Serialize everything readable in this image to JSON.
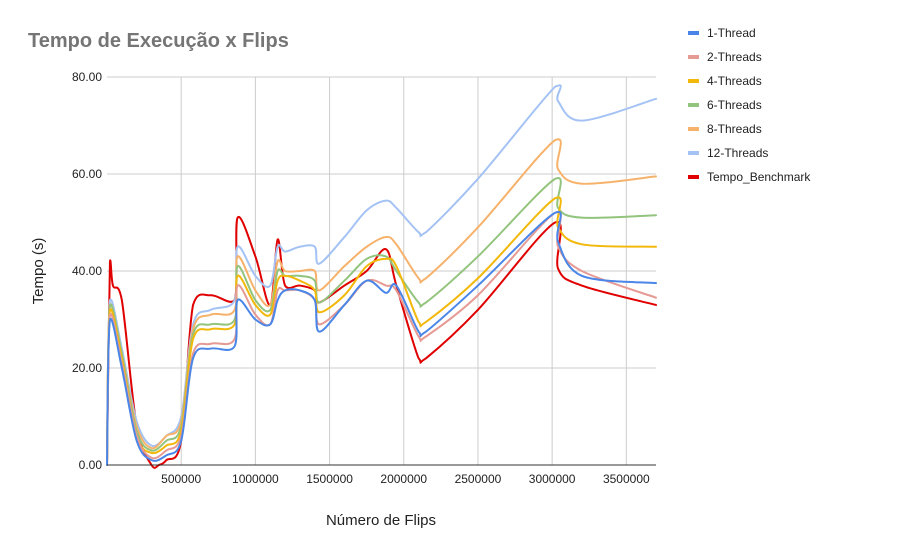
{
  "chart_data": {
    "type": "line",
    "title": "Tempo de Execução x Flips",
    "xlabel": "Número de Flips",
    "ylabel": "Tempo (s)",
    "xlim": [
      0,
      3700000
    ],
    "ylim": [
      0,
      80
    ],
    "xticks": [
      500000,
      1000000,
      1500000,
      2000000,
      2500000,
      3000000,
      3500000
    ],
    "xtick_labels": [
      "500000",
      "1000000",
      "1500000",
      "2000000",
      "2500000",
      "3000000",
      "3500000"
    ],
    "yticks": [
      0,
      20,
      40,
      60,
      80
    ],
    "ytick_labels": [
      "0.00",
      "20.00",
      "40.00",
      "60.00",
      "80.00"
    ],
    "grid": true,
    "legend_position": "right",
    "series": [
      {
        "name": "1-Thread",
        "color": "#4a86e8",
        "x": [
          0,
          20000,
          100000,
          200000,
          300000,
          400000,
          500000,
          580000,
          700000,
          860000,
          880000,
          1000000,
          1100000,
          1150000,
          1200000,
          1300000,
          1400000,
          1430000,
          1600000,
          1750000,
          1880000,
          1950000,
          2100000,
          2150000,
          2500000,
          3020000,
          3040000,
          3200000,
          3700000
        ],
        "y": [
          0,
          30,
          20,
          5,
          1,
          2,
          5,
          22,
          24,
          24.5,
          34,
          30,
          29,
          34,
          36,
          36,
          34,
          27.5,
          33,
          38,
          35.5,
          37,
          27.5,
          27.5,
          37,
          52,
          46,
          39,
          37.5
        ]
      },
      {
        "name": "2-Threads",
        "color": "#e69a94",
        "x": [
          0,
          20000,
          100000,
          200000,
          300000,
          400000,
          500000,
          580000,
          700000,
          860000,
          880000,
          1000000,
          1100000,
          1150000,
          1200000,
          1300000,
          1400000,
          1430000,
          1600000,
          1750000,
          1880000,
          1950000,
          2100000,
          2150000,
          2500000,
          3020000,
          3040000,
          3200000,
          3700000
        ],
        "y": [
          0,
          31,
          21,
          6,
          1.5,
          3,
          6,
          23,
          25,
          26,
          37,
          31,
          29,
          36,
          36,
          36,
          34,
          29,
          33,
          38,
          37,
          36,
          26.5,
          26.5,
          35,
          52,
          45,
          40,
          34.5
        ]
      },
      {
        "name": "4-Threads",
        "color": "#f2b80a",
        "x": [
          0,
          20000,
          100000,
          200000,
          300000,
          400000,
          500000,
          580000,
          700000,
          860000,
          880000,
          1000000,
          1100000,
          1150000,
          1200000,
          1300000,
          1400000,
          1430000,
          1600000,
          1750000,
          1880000,
          1950000,
          2100000,
          2150000,
          2500000,
          3020000,
          3040000,
          3200000,
          3700000
        ],
        "y": [
          0,
          32,
          22,
          6,
          2.5,
          4,
          7,
          26,
          28,
          29,
          39,
          33,
          31,
          38,
          39,
          38,
          36,
          31.5,
          35,
          41,
          42.5,
          41,
          29.5,
          29.5,
          38.5,
          55,
          49,
          45.5,
          45
        ]
      },
      {
        "name": "6-Threads",
        "color": "#93c47d",
        "x": [
          0,
          20000,
          100000,
          200000,
          300000,
          400000,
          500000,
          580000,
          700000,
          860000,
          880000,
          1000000,
          1100000,
          1150000,
          1200000,
          1300000,
          1400000,
          1430000,
          1600000,
          1750000,
          1880000,
          1950000,
          2100000,
          2150000,
          2500000,
          3020000,
          3040000,
          3200000,
          3700000
        ],
        "y": [
          0,
          33,
          23,
          7,
          3,
          5,
          8,
          27,
          29,
          30,
          41,
          34,
          32,
          40,
          39,
          39,
          38,
          33.5,
          38,
          42.5,
          43,
          40,
          33.5,
          33.5,
          43,
          59,
          53,
          51,
          51.5
        ]
      },
      {
        "name": "8-Threads",
        "color": "#f6b26b",
        "x": [
          0,
          20000,
          100000,
          200000,
          300000,
          400000,
          500000,
          580000,
          700000,
          860000,
          880000,
          1000000,
          1100000,
          1150000,
          1200000,
          1300000,
          1400000,
          1430000,
          1600000,
          1750000,
          1880000,
          1950000,
          2100000,
          2150000,
          2500000,
          3020000,
          3040000,
          3200000,
          3700000
        ],
        "y": [
          0,
          33,
          23,
          8,
          3.5,
          6,
          9,
          28,
          31,
          32,
          43,
          36,
          33,
          42,
          40,
          40,
          40,
          36,
          41,
          45,
          47,
          45.5,
          38.5,
          38.5,
          49,
          67,
          61,
          58,
          59.5
        ]
      },
      {
        "name": "12-Threads",
        "color": "#a4c2f4",
        "x": [
          0,
          20000,
          100000,
          200000,
          300000,
          400000,
          500000,
          580000,
          700000,
          860000,
          880000,
          1000000,
          1100000,
          1150000,
          1200000,
          1300000,
          1400000,
          1430000,
          1600000,
          1750000,
          1880000,
          1950000,
          2100000,
          2150000,
          2500000,
          3020000,
          3040000,
          3200000,
          3700000
        ],
        "y": [
          0,
          34,
          24,
          9,
          4,
          6,
          10,
          29,
          32,
          34,
          45,
          39,
          37,
          45,
          44,
          45,
          45,
          41.5,
          47,
          52.5,
          54.5,
          53,
          48,
          48,
          59,
          78,
          75,
          71,
          75.5
        ]
      },
      {
        "name": "Tempo_Benchmark",
        "color": "#e00000",
        "x": [
          0,
          20000,
          40000,
          100000,
          200000,
          300000,
          350000,
          400000,
          500000,
          580000,
          700000,
          860000,
          880000,
          1000000,
          1100000,
          1150000,
          1200000,
          1300000,
          1400000,
          1430000,
          1600000,
          1750000,
          1880000,
          1950000,
          2100000,
          2150000,
          2500000,
          3020000,
          3040000,
          3200000,
          3700000
        ],
        "y": [
          0,
          42,
          37,
          34,
          8,
          0,
          0,
          1,
          5,
          33,
          35,
          34,
          51,
          43,
          33,
          46.5,
          37,
          37,
          36,
          33.5,
          37,
          40,
          44.5,
          37,
          22,
          22,
          32,
          50,
          40.5,
          37,
          33
        ]
      }
    ]
  }
}
